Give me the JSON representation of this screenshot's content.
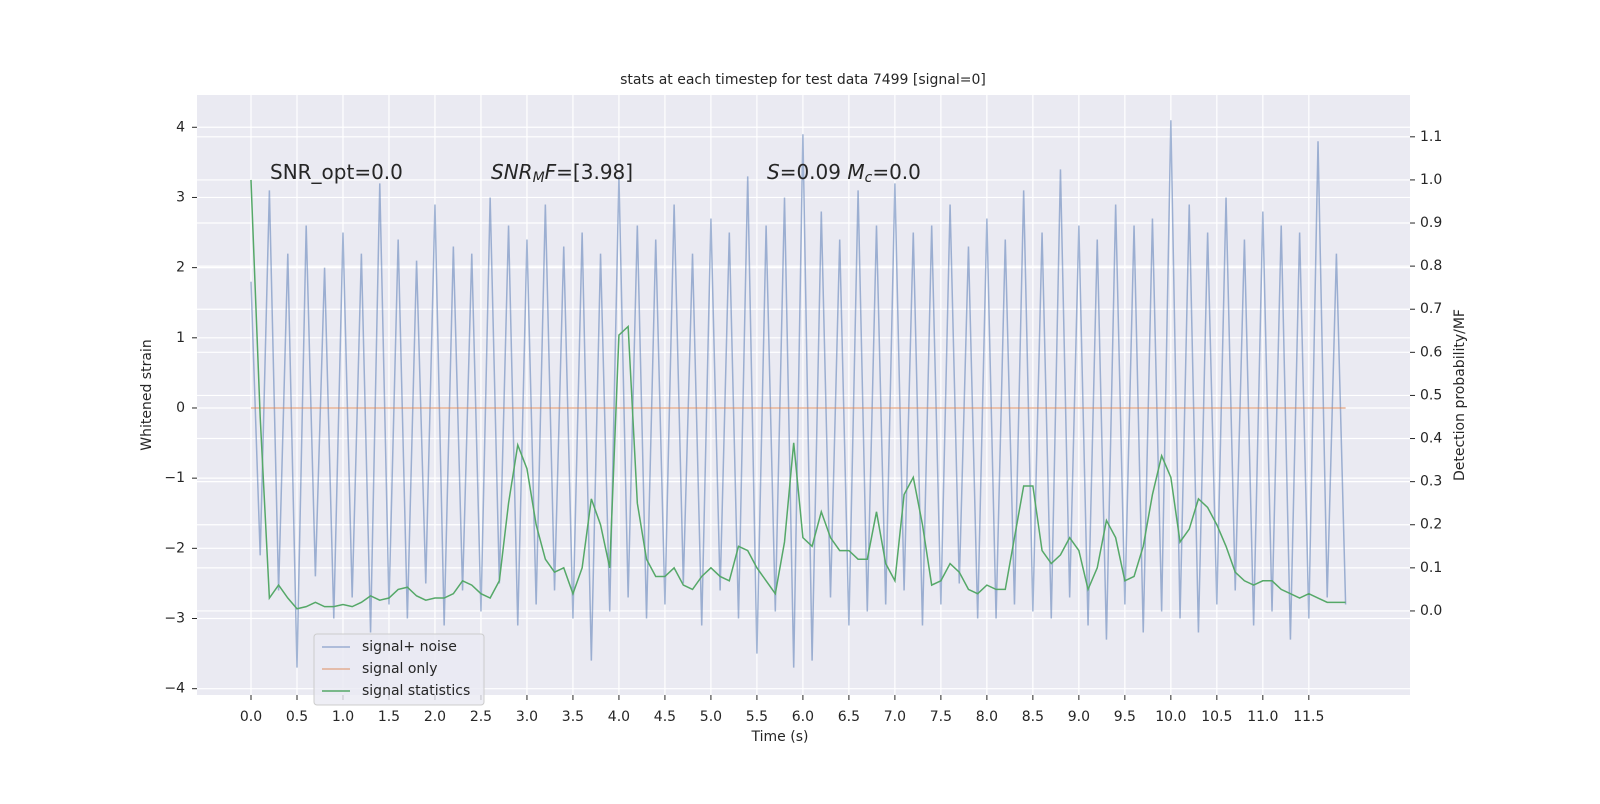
{
  "chart_data": {
    "type": "line",
    "title": "stats at each timestep for test data 7499 [signal=0]",
    "xlabel": "Time (s)",
    "ylabel": "Whitened strain",
    "y2label": "Detection probability/MF",
    "x": [
      0.0,
      0.1,
      0.2,
      0.3,
      0.4,
      0.5,
      0.6,
      0.7,
      0.8,
      0.9,
      1.0,
      1.1,
      1.2,
      1.3,
      1.4,
      1.5,
      1.6,
      1.7,
      1.8,
      1.9,
      2.0,
      2.1,
      2.2,
      2.3,
      2.4,
      2.5,
      2.6,
      2.7,
      2.8,
      2.9,
      3.0,
      3.1,
      3.2,
      3.3,
      3.4,
      3.5,
      3.6,
      3.7,
      3.8,
      3.9,
      4.0,
      4.1,
      4.2,
      4.3,
      4.4,
      4.5,
      4.6,
      4.7,
      4.8,
      4.9,
      5.0,
      5.1,
      5.2,
      5.3,
      5.4,
      5.5,
      5.6,
      5.7,
      5.8,
      5.9,
      6.0,
      6.1,
      6.2,
      6.3,
      6.4,
      6.5,
      6.6,
      6.7,
      6.8,
      6.9,
      7.0,
      7.1,
      7.2,
      7.3,
      7.4,
      7.5,
      7.6,
      7.7,
      7.8,
      7.9,
      8.0,
      8.1,
      8.2,
      8.3,
      8.4,
      8.5,
      8.6,
      8.7,
      8.8,
      8.9,
      9.0,
      9.1,
      9.2,
      9.3,
      9.4,
      9.5,
      9.6,
      9.7,
      9.8,
      9.9,
      10.0,
      10.1,
      10.2,
      10.3,
      10.4,
      10.5,
      10.6,
      10.7,
      10.8,
      10.9,
      11.0,
      11.1,
      11.2,
      11.3,
      11.4,
      11.5,
      11.6,
      11.7,
      11.8,
      11.9
    ],
    "series": [
      {
        "name": "signal+ noise",
        "color": "#4c72b0",
        "opacity": 0.5,
        "axis": "y",
        "values": [
          1.8,
          -2.1,
          3.1,
          -2.6,
          2.2,
          -3.7,
          2.6,
          -2.4,
          2.0,
          -3.0,
          2.5,
          -2.7,
          2.2,
          -3.2,
          3.2,
          -2.8,
          2.4,
          -3.0,
          2.1,
          -2.5,
          2.9,
          -3.1,
          2.3,
          -2.6,
          2.2,
          -2.9,
          3.0,
          -2.5,
          2.6,
          -3.1,
          2.4,
          -2.8,
          2.9,
          -2.6,
          2.3,
          -3.0,
          2.5,
          -3.6,
          2.2,
          -2.9,
          3.3,
          -2.7,
          2.6,
          -3.0,
          2.4,
          -2.8,
          2.9,
          -2.5,
          2.2,
          -3.1,
          2.7,
          -2.6,
          2.5,
          -3.0,
          3.3,
          -3.5,
          2.6,
          -2.9,
          3.0,
          -3.7,
          3.9,
          -3.6,
          2.8,
          -2.7,
          2.4,
          -3.1,
          3.1,
          -2.9,
          2.6,
          -2.8,
          3.2,
          -2.6,
          2.5,
          -3.1,
          2.6,
          -2.8,
          2.9,
          -2.5,
          2.3,
          -3.0,
          2.7,
          -3.0,
          2.4,
          -2.8,
          3.1,
          -2.9,
          2.5,
          -3.0,
          3.4,
          -2.7,
          2.6,
          -3.1,
          2.4,
          -3.3,
          2.9,
          -2.8,
          2.6,
          -3.2,
          2.7,
          -2.9,
          4.1,
          -3.0,
          2.9,
          -3.2,
          2.5,
          -2.8,
          3.0,
          -2.6,
          2.4,
          -3.1,
          2.8,
          -2.9,
          2.6,
          -3.3,
          2.5,
          -3.0,
          3.8,
          -2.7,
          2.2,
          -2.8
        ]
      },
      {
        "name": "signal only",
        "color": "#dd8452",
        "opacity": 0.6,
        "axis": "y",
        "values": [
          0,
          0,
          0,
          0,
          0,
          0,
          0,
          0,
          0,
          0,
          0,
          0,
          0,
          0,
          0,
          0,
          0,
          0,
          0,
          0,
          0,
          0,
          0,
          0,
          0,
          0,
          0,
          0,
          0,
          0,
          0,
          0,
          0,
          0,
          0,
          0,
          0,
          0,
          0,
          0,
          0,
          0,
          0,
          0,
          0,
          0,
          0,
          0,
          0,
          0,
          0,
          0,
          0,
          0,
          0,
          0,
          0,
          0,
          0,
          0,
          0,
          0,
          0,
          0,
          0,
          0,
          0,
          0,
          0,
          0,
          0,
          0,
          0,
          0,
          0,
          0,
          0,
          0,
          0,
          0,
          0,
          0,
          0,
          0,
          0,
          0,
          0,
          0,
          0,
          0,
          0,
          0,
          0,
          0,
          0,
          0,
          0,
          0,
          0,
          0,
          0,
          0,
          0,
          0,
          0,
          0,
          0,
          0,
          0,
          0,
          0,
          0,
          0,
          0,
          0,
          0,
          0,
          0,
          0,
          0
        ]
      },
      {
        "name": "signal statistics",
        "color": "#55a868",
        "opacity": 1,
        "axis": "y2",
        "values": [
          1.0,
          0.45,
          0.03,
          0.06,
          0.03,
          0.005,
          0.01,
          0.02,
          0.01,
          0.01,
          0.015,
          0.01,
          0.02,
          0.035,
          0.025,
          0.03,
          0.05,
          0.055,
          0.035,
          0.025,
          0.03,
          0.03,
          0.04,
          0.07,
          0.06,
          0.04,
          0.03,
          0.07,
          0.25,
          0.385,
          0.33,
          0.2,
          0.12,
          0.09,
          0.1,
          0.04,
          0.1,
          0.26,
          0.2,
          0.1,
          0.64,
          0.66,
          0.25,
          0.12,
          0.08,
          0.08,
          0.1,
          0.06,
          0.05,
          0.08,
          0.1,
          0.08,
          0.07,
          0.15,
          0.14,
          0.1,
          0.07,
          0.04,
          0.16,
          0.39,
          0.17,
          0.15,
          0.23,
          0.17,
          0.14,
          0.14,
          0.12,
          0.12,
          0.23,
          0.11,
          0.07,
          0.27,
          0.31,
          0.2,
          0.06,
          0.07,
          0.11,
          0.09,
          0.05,
          0.04,
          0.06,
          0.05,
          0.05,
          0.17,
          0.29,
          0.29,
          0.14,
          0.11,
          0.13,
          0.17,
          0.14,
          0.05,
          0.1,
          0.21,
          0.17,
          0.07,
          0.08,
          0.15,
          0.27,
          0.36,
          0.31,
          0.16,
          0.19,
          0.26,
          0.24,
          0.2,
          0.15,
          0.09,
          0.07,
          0.06,
          0.07,
          0.07,
          0.05,
          0.04,
          0.03,
          0.04,
          0.03,
          0.02,
          0.02,
          0.02
        ]
      }
    ],
    "xlim": [
      -0.587,
      12.6
    ],
    "xticks": [
      {
        "value": 0,
        "label": "0.0"
      },
      0.5,
      {
        "value": 1,
        "label": "1.0"
      },
      1.5,
      {
        "value": 2,
        "label": "2.0"
      },
      2.5,
      {
        "value": 3,
        "label": "3.0"
      },
      3.5,
      {
        "value": 4,
        "label": "4.0"
      },
      4.5,
      {
        "value": 5,
        "label": "5.0"
      },
      5.5,
      {
        "value": 6,
        "label": "6.0"
      },
      6.5,
      {
        "value": 7,
        "label": "7.0"
      },
      7.5,
      {
        "value": 8,
        "label": "8.0"
      },
      8.5,
      {
        "value": 9,
        "label": "9.0"
      },
      9.5,
      {
        "value": 10,
        "label": "10.0"
      },
      10.5,
      {
        "value": 11,
        "label": "11.0"
      },
      11.5
    ],
    "ylim": [
      -4.09,
      4.46
    ],
    "yticks": [
      {
        "value": -4,
        "label": "−4"
      },
      {
        "value": -3,
        "label": "−3"
      },
      {
        "value": -2,
        "label": "−2"
      },
      {
        "value": -1,
        "label": "−1"
      },
      0,
      1,
      2,
      3,
      4
    ],
    "y2lim": [
      -0.195,
      1.197
    ],
    "y2ticks": [
      {
        "value": 0,
        "label": "0.0"
      },
      0.1,
      0.2,
      0.3,
      0.4,
      0.5,
      0.6,
      0.7,
      0.8,
      0.9,
      {
        "value": 1,
        "label": "1.0"
      },
      1.1
    ],
    "grid": true,
    "legend": "lower left",
    "annotations": [
      [
        {
          "text": "SNR_opt=0.0",
          "style": "normal"
        }
      ],
      [
        {
          "text": "SNR",
          "style": "italic"
        },
        {
          "text": "M",
          "style": "sub"
        },
        {
          "text": "F",
          "style": "italic"
        },
        {
          "text": "=[3.98]",
          "style": "normal"
        }
      ],
      [
        {
          "text": "S",
          "style": "italic"
        },
        {
          "text": "=0.09   ",
          "style": "normal"
        },
        {
          "text": "M",
          "style": "italic"
        },
        {
          "text": "c",
          "style": "sub"
        },
        {
          "text": "=0.0",
          "style": "normal"
        }
      ]
    ]
  }
}
